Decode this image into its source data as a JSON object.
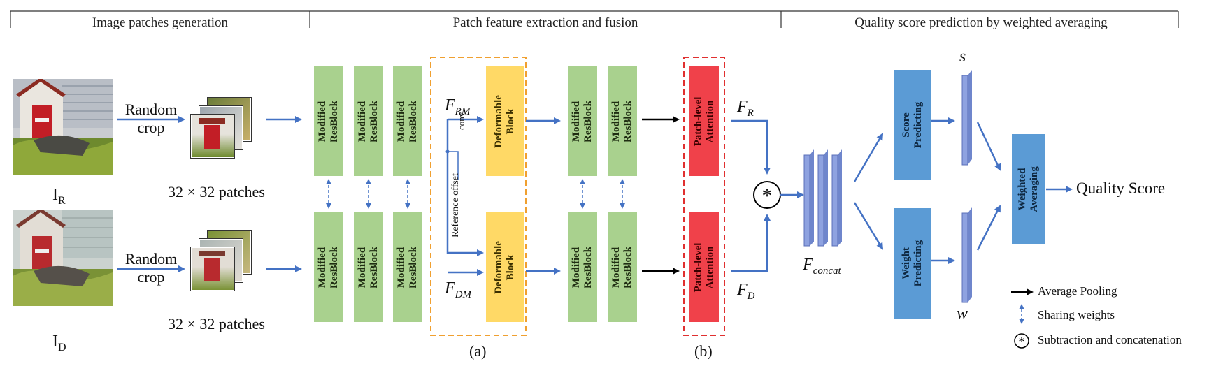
{
  "sections": {
    "s1": "Image patches generation",
    "s2": "Patch feature extraction and fusion",
    "s3": "Quality score prediction by weighted averaging"
  },
  "inputs": {
    "ref": {
      "main": "I",
      "sub": "R"
    },
    "dist": {
      "main": "I",
      "sub": "D"
    }
  },
  "random_crop": {
    "line1": "Random",
    "line2": "crop"
  },
  "patches_caption": "32 × 32 patches",
  "blocks": {
    "modified_resblock": "Modified\nResBlock",
    "deformable_block": "Deformable\nBlock",
    "patch_attention": "Patch-level\nAttention",
    "score_predicting": "Score\nPredicting",
    "weight_predicting": "Weight\nPredicting",
    "weighted_averaging": "Weighted\nAveraging"
  },
  "features": {
    "f_rm": {
      "main": "F",
      "sub": "RM"
    },
    "f_dm": {
      "main": "F",
      "sub": "DM"
    },
    "f_r": {
      "main": "F",
      "sub": "R"
    },
    "f_d": {
      "main": "F",
      "sub": "D"
    },
    "f_concat": {
      "main": "F",
      "sub": "concat"
    }
  },
  "annotations": {
    "conv": "conv",
    "reference_offset": "Reference offset",
    "part_a": "(a)",
    "part_b": "(b)",
    "s": "s",
    "w": "w",
    "star": "*"
  },
  "output": "Quality Score",
  "legend": [
    {
      "icon": "solid-black-arrow",
      "label": "Average Pooling"
    },
    {
      "icon": "dashed-double-arrow",
      "label": "Sharing weights"
    },
    {
      "icon": "circled-star",
      "label": "Subtraction and concatenation"
    }
  ],
  "colors": {
    "arrow_blue": "#4472c4",
    "resblock_green": "#a9d18e",
    "deformable_yellow": "#ffd966",
    "attention_red": "#f0414a",
    "predict_blue": "#5b9bd5",
    "feature_bar": "#8ea2e0",
    "dashed_orange": "#f0a030",
    "dashed_red": "#e03030"
  }
}
